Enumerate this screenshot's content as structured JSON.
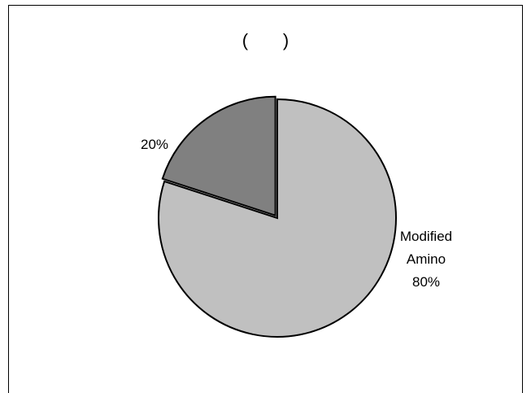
{
  "chart_data": {
    "type": "pie",
    "title": "(       )",
    "slices": [
      {
        "label": "Modified Amino",
        "value": 80,
        "value_label": "80%",
        "color": "#c0c0c0"
      },
      {
        "label": "",
        "value": 20,
        "value_label": "20%",
        "color": "#808080"
      }
    ],
    "legend": false
  }
}
